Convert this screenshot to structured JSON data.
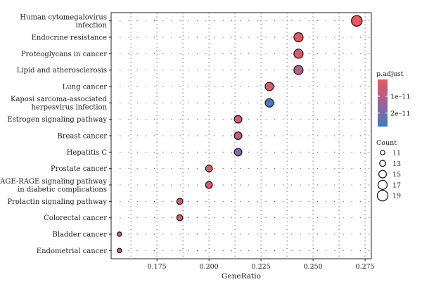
{
  "chart_data": {
    "type": "scatter",
    "xlabel": "GeneRatio",
    "xlim": [
      0.153,
      0.278
    ],
    "x_ticks": [
      0.175,
      0.2,
      0.225,
      0.25,
      0.275
    ],
    "x_tick_labels": [
      "0.175",
      "0.200",
      "0.225",
      "0.250",
      "0.275"
    ],
    "grid": "dotted",
    "legend_position": "right",
    "points": [
      {
        "term": [
          "Human cytomegalovirus",
          "infection"
        ],
        "gene_ratio": 0.271,
        "count": 19,
        "p_adjust": 0.0
      },
      {
        "term": [
          "Endocrine resistance"
        ],
        "gene_ratio": 0.243,
        "count": 17,
        "p_adjust": 1e-12
      },
      {
        "term": [
          "Proteoglycans in cancer"
        ],
        "gene_ratio": 0.243,
        "count": 17,
        "p_adjust": 3e-12
      },
      {
        "term": [
          "Lipid and atherosclerosis"
        ],
        "gene_ratio": 0.243,
        "count": 17,
        "p_adjust": 1e-11
      },
      {
        "term": [
          "Lung cancer"
        ],
        "gene_ratio": 0.229,
        "count": 16,
        "p_adjust": 2e-12
      },
      {
        "term": [
          "Kaposi sarcoma-associated",
          "herpesvirus infection"
        ],
        "gene_ratio": 0.229,
        "count": 16,
        "p_adjust": 2.6e-11
      },
      {
        "term": [
          "Estrogen signaling pathway"
        ],
        "gene_ratio": 0.214,
        "count": 15,
        "p_adjust": 3e-12
      },
      {
        "term": [
          "Breast cancer"
        ],
        "gene_ratio": 0.214,
        "count": 15,
        "p_adjust": 7e-12
      },
      {
        "term": [
          "Hepatitis C"
        ],
        "gene_ratio": 0.214,
        "count": 15,
        "p_adjust": 1.7e-11
      },
      {
        "term": [
          "Prostate cancer"
        ],
        "gene_ratio": 0.2,
        "count": 14,
        "p_adjust": 2e-12
      },
      {
        "term": [
          "AGE-RAGE signaling pathway",
          "in diabetic complications"
        ],
        "gene_ratio": 0.2,
        "count": 14,
        "p_adjust": 2e-12
      },
      {
        "term": [
          "Prolactin signaling pathway"
        ],
        "gene_ratio": 0.186,
        "count": 13,
        "p_adjust": 3e-12
      },
      {
        "term": [
          "Colorectal cancer"
        ],
        "gene_ratio": 0.186,
        "count": 13,
        "p_adjust": 3e-12
      },
      {
        "term": [
          "Bladder cancer"
        ],
        "gene_ratio": 0.157,
        "count": 11,
        "p_adjust": 3e-12
      },
      {
        "term": [
          "Endometrial cancer"
        ],
        "gene_ratio": 0.157,
        "count": 11,
        "p_adjust": 4e-12
      }
    ],
    "color_legend": {
      "title": "p.adjust",
      "range": [
        0.0,
        2.8e-11
      ],
      "ticks": [
        1e-11,
        2e-11
      ],
      "tick_labels": [
        "1e–11",
        "2e–11"
      ],
      "colors": [
        "#e8585e",
        "#9a649a",
        "#3d7cbf"
      ]
    },
    "size_legend": {
      "title": "Count",
      "values": [
        11,
        13,
        15,
        17,
        19
      ],
      "labels": [
        "11",
        "13",
        "15",
        "17",
        "19"
      ]
    }
  }
}
